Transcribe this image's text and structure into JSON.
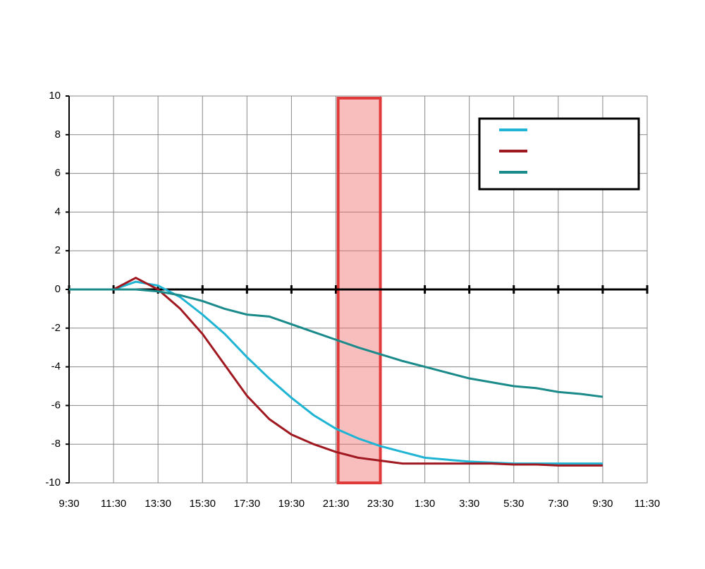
{
  "chart_data": {
    "type": "line",
    "x": [
      9.5,
      10.5,
      11.5,
      12.5,
      13.5,
      14.5,
      15.5,
      16.5,
      17.5,
      18.5,
      19.5,
      20.5,
      21.5,
      22.5,
      23.5,
      24.5,
      25.5,
      26.5,
      27.5,
      28.5,
      29.5,
      30.5,
      31.5,
      32.5,
      33.5
    ],
    "series": [
      {
        "color": "#1fb4d4",
        "values": [
          0,
          0,
          0,
          0.4,
          0.2,
          -0.4,
          -1.3,
          -2.3,
          -3.5,
          -4.6,
          -5.6,
          -6.5,
          -7.2,
          -7.7,
          -8.1,
          -8.4,
          -8.7,
          -8.8,
          -8.9,
          -8.95,
          -9,
          -9,
          -9,
          -9,
          -9
        ]
      },
      {
        "color": "#a01820",
        "values": [
          null,
          0,
          0,
          0.6,
          0,
          -1,
          -2.3,
          -3.9,
          -5.5,
          -6.7,
          -7.5,
          -8.0,
          -8.4,
          -8.7,
          -8.85,
          -9,
          -9,
          -9,
          -9,
          -9,
          -9.05,
          -9.05,
          -9.1,
          -9.1,
          -9.1
        ]
      },
      {
        "color": "#1a8a8a",
        "values": [
          0,
          0,
          0,
          0,
          -0.1,
          -0.3,
          -0.6,
          -1.0,
          -1.3,
          -1.4,
          -1.8,
          -2.2,
          -2.6,
          -3.0,
          -3.35,
          -3.7,
          -4.0,
          -4.3,
          -4.6,
          -4.8,
          -5.0,
          -5.1,
          -5.3,
          -5.4,
          -5.55
        ]
      }
    ],
    "highlight": [
      21.6,
      23.5
    ],
    "xlim": [
      9.5,
      35.5
    ],
    "xticks": [
      {
        "value": 9.5,
        "label": "9:30"
      },
      {
        "value": 11.5,
        "label": "11:30"
      },
      {
        "value": 13.5,
        "label": "13:30"
      },
      {
        "value": 15.5,
        "label": "15:30"
      },
      {
        "value": 17.5,
        "label": "17:30"
      },
      {
        "value": 19.5,
        "label": "19:30"
      },
      {
        "value": 21.5,
        "label": "21:30"
      },
      {
        "value": 23.5,
        "label": "23:30"
      },
      {
        "value": 25.5,
        "label": "1:30"
      },
      {
        "value": 27.5,
        "label": "3:30"
      },
      {
        "value": 29.5,
        "label": "5:30"
      },
      {
        "value": 31.5,
        "label": "7:30"
      },
      {
        "value": 33.5,
        "label": "9:30"
      },
      {
        "value": 35.5,
        "label": "11:30"
      }
    ],
    "ylim": [
      -10,
      10
    ],
    "yticks": [
      -10,
      -8,
      -6,
      -4,
      -2,
      0,
      2,
      4,
      6,
      8,
      10
    ],
    "grid": true
  }
}
